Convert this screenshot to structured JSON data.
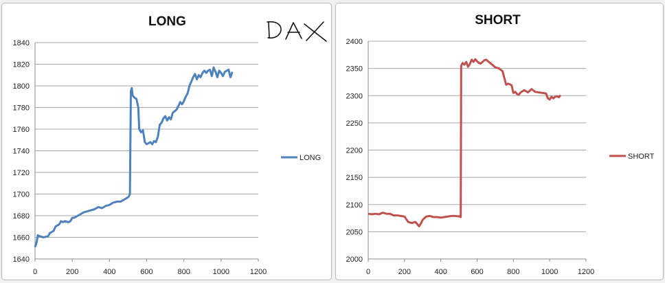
{
  "annotation": "DAX",
  "chart_data": [
    {
      "type": "line",
      "title": "LONG",
      "xlabel": "",
      "ylabel": "",
      "xlim": [
        0,
        1200
      ],
      "ylim": [
        1640,
        1840
      ],
      "x_ticks": [
        0,
        200,
        400,
        600,
        800,
        1000,
        1200
      ],
      "y_ticks": [
        1640,
        1660,
        1680,
        1700,
        1720,
        1740,
        1760,
        1780,
        1800,
        1820,
        1840
      ],
      "grid": "horizontal",
      "legend_position": "right",
      "series": [
        {
          "name": "LONG",
          "color": "#4f81bd",
          "x": [
            0,
            8,
            15,
            25,
            45,
            70,
            80,
            100,
            110,
            130,
            140,
            150,
            160,
            180,
            190,
            200,
            210,
            230,
            250,
            260,
            280,
            300,
            320,
            340,
            360,
            380,
            400,
            420,
            440,
            460,
            480,
            500,
            505,
            510,
            515,
            520,
            525,
            535,
            545,
            555,
            560,
            570,
            580,
            590,
            600,
            620,
            630,
            640,
            650,
            660,
            670,
            680,
            690,
            700,
            710,
            720,
            730,
            740,
            760,
            770,
            780,
            790,
            800,
            810,
            820,
            830,
            840,
            850,
            860,
            870,
            880,
            890,
            900,
            910,
            920,
            930,
            940,
            950,
            960,
            970,
            980,
            990,
            1000,
            1010,
            1020,
            1030,
            1040,
            1050,
            1055,
            1060
          ],
          "y": [
            1651,
            1655,
            1662,
            1661,
            1660,
            1661,
            1664,
            1666,
            1670,
            1672,
            1675,
            1674,
            1675,
            1674,
            1675,
            1678,
            1678,
            1680,
            1682,
            1683,
            1684,
            1685,
            1686,
            1688,
            1687,
            1689,
            1690,
            1692,
            1693,
            1693,
            1695,
            1697,
            1698,
            1700,
            1795,
            1798,
            1791,
            1789,
            1788,
            1780,
            1760,
            1757,
            1759,
            1748,
            1746,
            1748,
            1746,
            1749,
            1748,
            1753,
            1764,
            1766,
            1770,
            1772,
            1768,
            1771,
            1769,
            1775,
            1778,
            1781,
            1785,
            1783,
            1786,
            1790,
            1793,
            1800,
            1804,
            1808,
            1811,
            1806,
            1810,
            1808,
            1812,
            1814,
            1812,
            1814,
            1815,
            1809,
            1817,
            1813,
            1808,
            1814,
            1812,
            1809,
            1813,
            1814,
            1815,
            1808,
            1810,
            1813
          ]
        }
      ]
    },
    {
      "type": "line",
      "title": "SHORT",
      "xlabel": "",
      "ylabel": "",
      "xlim": [
        0,
        1200
      ],
      "ylim": [
        2000,
        2400
      ],
      "x_ticks": [
        0,
        200,
        400,
        600,
        800,
        1000,
        1200
      ],
      "y_ticks": [
        2000,
        2050,
        2100,
        2150,
        2200,
        2250,
        2300,
        2350,
        2400
      ],
      "grid": "horizontal",
      "legend_position": "right",
      "series": [
        {
          "name": "SHORT",
          "color": "#c0504d",
          "x": [
            0,
            20,
            40,
            60,
            80,
            100,
            120,
            140,
            160,
            180,
            200,
            220,
            240,
            260,
            280,
            290,
            300,
            320,
            340,
            360,
            380,
            400,
            420,
            440,
            460,
            480,
            500,
            505,
            510,
            512,
            520,
            530,
            540,
            550,
            560,
            570,
            580,
            590,
            600,
            610,
            620,
            640,
            650,
            660,
            680,
            700,
            720,
            740,
            760,
            770,
            780,
            790,
            800,
            810,
            820,
            830,
            840,
            850,
            860,
            880,
            900,
            920,
            940,
            960,
            980,
            990,
            1000,
            1010,
            1020,
            1030,
            1040,
            1050,
            1060
          ],
          "y": [
            2083,
            2082,
            2083,
            2082,
            2085,
            2083,
            2083,
            2080,
            2080,
            2079,
            2078,
            2068,
            2066,
            2068,
            2060,
            2065,
            2072,
            2078,
            2079,
            2077,
            2077,
            2076,
            2077,
            2078,
            2079,
            2079,
            2078,
            2079,
            2077,
            2355,
            2360,
            2357,
            2362,
            2353,
            2358,
            2366,
            2362,
            2367,
            2363,
            2360,
            2359,
            2365,
            2366,
            2363,
            2358,
            2352,
            2350,
            2345,
            2320,
            2322,
            2321,
            2319,
            2305,
            2307,
            2303,
            2302,
            2306,
            2308,
            2310,
            2306,
            2312,
            2307,
            2306,
            2305,
            2304,
            2295,
            2293,
            2298,
            2295,
            2298,
            2299,
            2297,
            2301
          ]
        }
      ]
    }
  ]
}
